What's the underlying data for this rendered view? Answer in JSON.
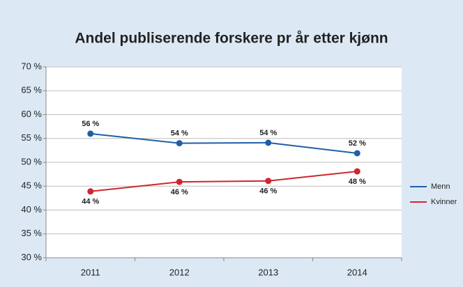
{
  "chart_data": {
    "type": "line",
    "title": "Andel publiserende forskere pr år etter kjønn",
    "categories": [
      "2011",
      "2012",
      "2013",
      "2014"
    ],
    "series": [
      {
        "name": "Menn",
        "color": "#1f5fa6",
        "values": [
          56,
          54,
          54.1,
          51.9
        ],
        "value_labels": [
          "56 %",
          "54 %",
          "54 %",
          "52 %"
        ],
        "label_position": "above"
      },
      {
        "name": "Kvinner",
        "color": "#d0262e",
        "values": [
          43.9,
          45.9,
          46.1,
          48.1
        ],
        "value_labels": [
          "44 %",
          "46 %",
          "46 %",
          "48 %"
        ],
        "label_position": "below"
      }
    ],
    "ylim": [
      30,
      70
    ],
    "yticks": [
      {
        "value": 30,
        "label": "30 %"
      },
      {
        "value": 35,
        "label": "35 %"
      },
      {
        "value": 40,
        "label": "40 %"
      },
      {
        "value": 45,
        "label": "45 %"
      },
      {
        "value": 50,
        "label": "50 %"
      },
      {
        "value": 55,
        "label": "55 %"
      },
      {
        "value": 60,
        "label": "60 %"
      },
      {
        "value": 65,
        "label": "65 %"
      },
      {
        "value": 70,
        "label": "70 %"
      }
    ],
    "grid": true,
    "legend": "right"
  }
}
